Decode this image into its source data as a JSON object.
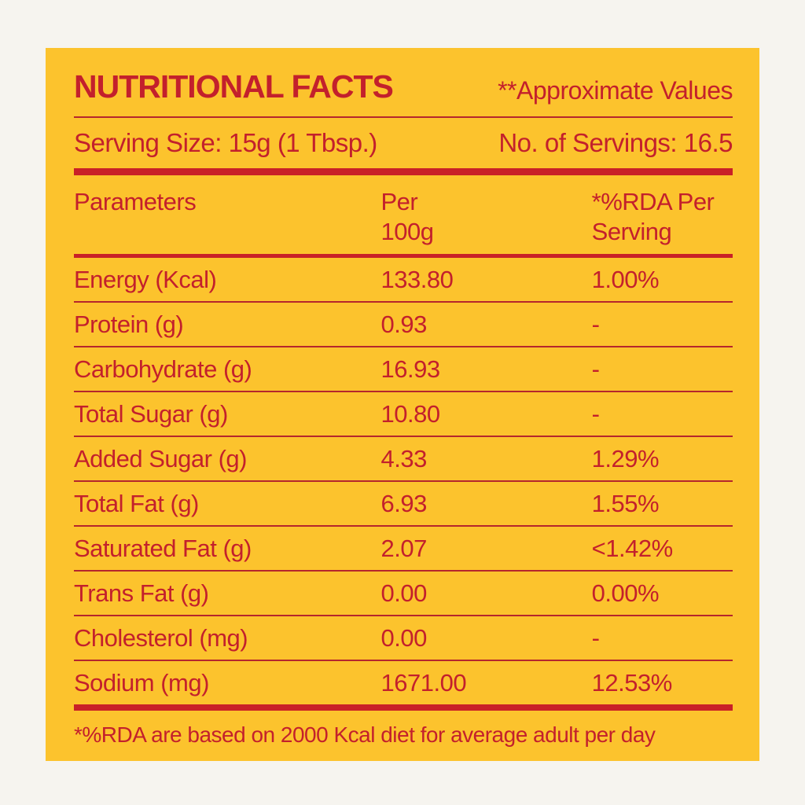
{
  "colors": {
    "page_background": "#f6f4ef",
    "panel_background": "#fcc32d",
    "text_red": "#c3202c",
    "divider_red": "#c92027"
  },
  "header": {
    "title": "NUTRITIONAL FACTS",
    "subtitle": "**Approximate Values"
  },
  "serving": {
    "size_label": "Serving Size: 15g (1 Tbsp.)",
    "count_label": "No. of Servings: 16.5"
  },
  "table": {
    "columns": {
      "parameter": {
        "line1": "Parameters",
        "line2": ""
      },
      "per_100g": {
        "line1": "Per",
        "line2": "100g"
      },
      "rda": {
        "line1": "*%RDA Per",
        "line2": "Serving"
      }
    },
    "rows": [
      {
        "parameter": "Energy (Kcal)",
        "per_100g": "133.80",
        "rda": "1.00%"
      },
      {
        "parameter": "Protein (g)",
        "per_100g": "0.93",
        "rda": "-"
      },
      {
        "parameter": "Carbohydrate (g)",
        "per_100g": "16.93",
        "rda": "-"
      },
      {
        "parameter": "Total Sugar (g)",
        "per_100g": "10.80",
        "rda": "-"
      },
      {
        "parameter": "Added Sugar (g)",
        "per_100g": "4.33",
        "rda": "1.29%"
      },
      {
        "parameter": "Total Fat (g)",
        "per_100g": "6.93",
        "rda": "1.55%"
      },
      {
        "parameter": "Saturated Fat (g)",
        "per_100g": "2.07",
        "rda": "<1.42%"
      },
      {
        "parameter": "Trans Fat (g)",
        "per_100g": "0.00",
        "rda": "0.00%"
      },
      {
        "parameter": "Cholesterol (mg)",
        "per_100g": "0.00",
        "rda": "-"
      },
      {
        "parameter": "Sodium (mg)",
        "per_100g": "1671.00",
        "rda": "12.53%"
      }
    ]
  },
  "footer": {
    "note": "*%RDA are based on 2000 Kcal diet for average adult per day"
  }
}
